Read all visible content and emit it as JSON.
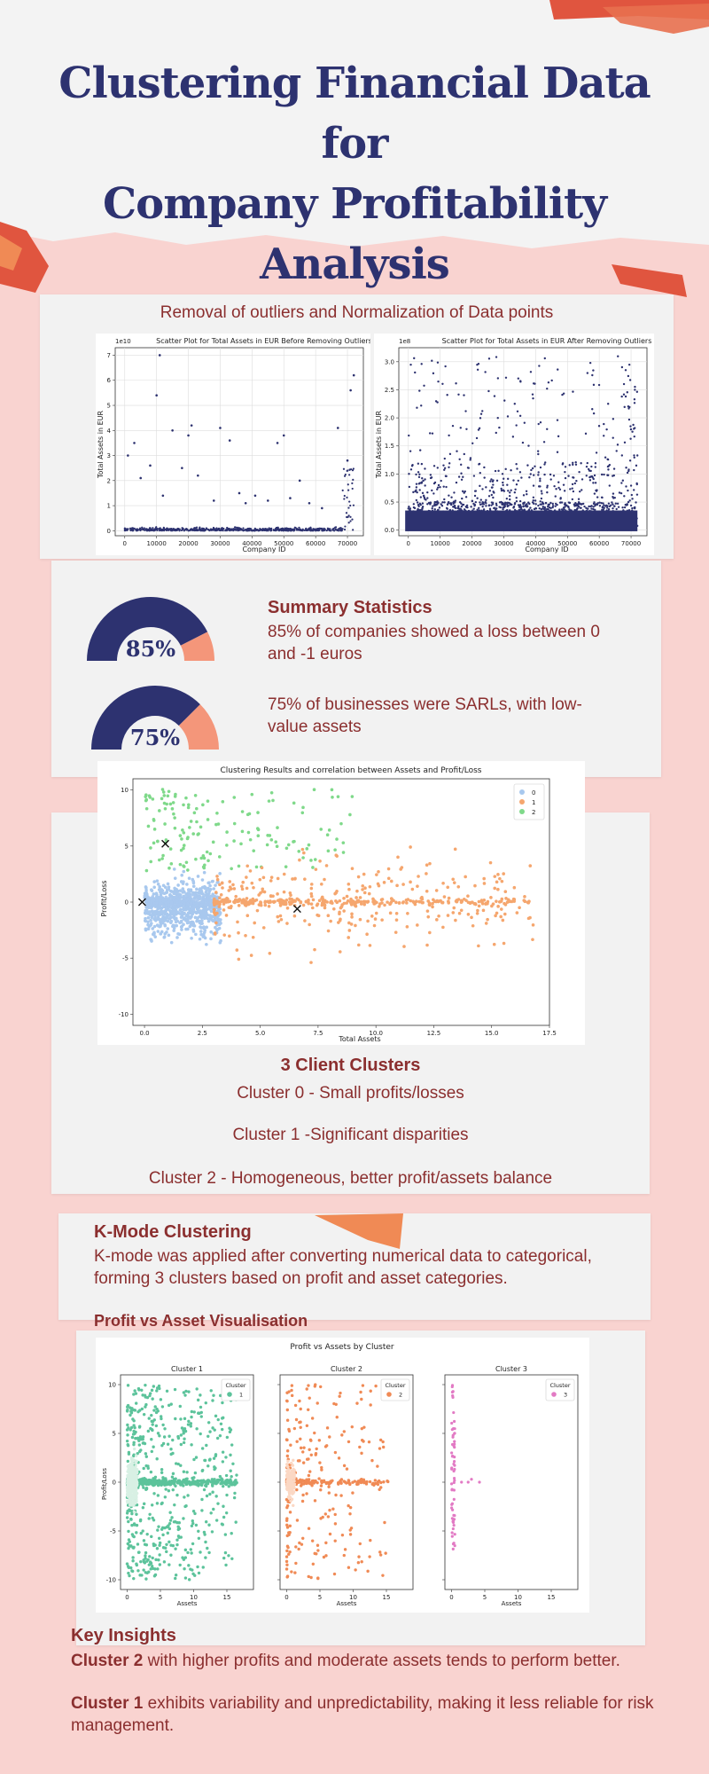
{
  "title_lines": [
    "Clustering Financial Data for",
    "Company Profitability",
    "Analysis"
  ],
  "outliers_section": {
    "title": "Removal of outliers and Normalization of Data points",
    "chart_before": {
      "title": "Scatter Plot for Total Assets in EUR Before Removing Outliers",
      "xlabel": "Company ID",
      "ylabel": "Total Assets in EUR",
      "exponent": "1e10",
      "xticks": [
        "0",
        "10000",
        "20000",
        "30000",
        "40000",
        "50000",
        "60000",
        "70000"
      ],
      "yticks": [
        "0",
        "1",
        "2",
        "3",
        "4",
        "5",
        "6",
        "7"
      ]
    },
    "chart_after": {
      "title": "Scatter Plot for Total Assets in EUR After Removing Outliers",
      "xlabel": "Company ID",
      "ylabel": "Total Assets in EUR",
      "exponent": "1e8",
      "xticks": [
        "0",
        "10000",
        "20000",
        "30000",
        "40000",
        "50000",
        "60000",
        "70000"
      ],
      "yticks": [
        "0.0",
        "0.5",
        "1.0",
        "1.5",
        "2.0",
        "2.5",
        "3.0"
      ]
    }
  },
  "summary": {
    "heading": "Summary Statistics",
    "stat1_pct_label": "85%",
    "stat1_text": "85% of companies showed a loss between 0 and -1 euros",
    "stat2_pct_label": "75%",
    "stat2_text": "75% of businesses were SARLs, with low-value assets"
  },
  "cluster_chart": {
    "title": "Clustering Results and correlation between Assets and Profit/Loss",
    "xlabel": "Total Assets",
    "ylabel": "Profit/Loss",
    "xticks": [
      "0.0",
      "2.5",
      "5.0",
      "7.5",
      "10.0",
      "12.5",
      "15.0",
      "17.5"
    ],
    "yticks": [
      "10",
      "5",
      "0",
      "-5",
      "-10"
    ],
    "legend": [
      "0",
      "1",
      "2"
    ]
  },
  "clusters_text": {
    "heading": "3 Client Clusters",
    "c0": "Cluster 0 - Small profits/losses",
    "c1": "Cluster 1 -Significant disparities",
    "c2": "Cluster 2 - Homogeneous, better profit/assets balance"
  },
  "kmode": {
    "heading": "K-Mode Clustering",
    "text": "K-mode was applied after converting numerical data to categorical, forming 3 clusters based on profit and asset categories.",
    "viz_heading": "Profit vs Asset Visualisation"
  },
  "pva_chart": {
    "suptitle": "Profit vs Assets by Cluster",
    "panels": [
      {
        "title": "Cluster 1",
        "legend_title": "Cluster",
        "legend_label": "1"
      },
      {
        "title": "Cluster 2",
        "legend_title": "Cluster",
        "legend_label": "2"
      },
      {
        "title": "Cluster 3",
        "legend_title": "Cluster",
        "legend_label": "3"
      }
    ],
    "xlabel": "Assets",
    "ylabel": "Profit/Loss",
    "xticks": [
      "0",
      "5",
      "10",
      "15"
    ],
    "yticks": [
      "10",
      "5",
      "0",
      "-5",
      "-10"
    ]
  },
  "insights": {
    "heading": "Key Insights",
    "p1_bold": "Cluster 2",
    "p1_rest": " with higher profits and moderate assets tends to perform better.",
    "p2_bold": "Cluster 1",
    "p2_rest": " exhibits variability and unpredictability, making it less reliable for risk management."
  },
  "colors": {
    "navy": "#2d3270",
    "salmon": "#f4967a",
    "maroon": "#8b2f2f",
    "cluster0": "#a8c8ee",
    "cluster1": "#f5a66e",
    "cluster2": "#7fd98a",
    "kteal": "#5cc39b",
    "korange": "#f08a55",
    "kpink": "#e27ac4"
  },
  "chart_data": [
    {
      "type": "gauge",
      "values": [
        85,
        75
      ],
      "labels": [
        "85%",
        "75%"
      ]
    },
    {
      "type": "scatter",
      "title": "Scatter Plot for Total Assets in EUR Before Removing Outliers",
      "xlabel": "Company ID",
      "ylabel": "Total Assets in EUR",
      "xlim": [
        -3000,
        75000
      ],
      "ylim": [
        -0.2,
        7.3
      ],
      "y_scale_note": "1e10",
      "series": [
        {
          "x": [
            1000,
            3000,
            5000,
            8000,
            10000,
            11000,
            12000,
            15000,
            18000,
            20000,
            21000,
            23000,
            28000,
            30000,
            33000,
            36000,
            38000,
            41000,
            45000,
            48000,
            50000,
            52000,
            55000,
            58000,
            62000,
            67000,
            70000,
            71000,
            72000
          ],
          "y": [
            3.0,
            3.5,
            2.1,
            2.6,
            5.4,
            7.0,
            1.4,
            4.0,
            2.5,
            3.8,
            4.2,
            2.2,
            1.2,
            4.1,
            3.6,
            1.5,
            1.1,
            1.4,
            1.2,
            3.5,
            3.8,
            1.3,
            2.0,
            1.1,
            0.9,
            4.1,
            2.8,
            5.6,
            6.2
          ]
        }
      ]
    },
    {
      "type": "scatter",
      "title": "Scatter Plot for Total Assets in EUR After Removing Outliers",
      "xlabel": "Company ID",
      "ylabel": "Total Assets in EUR",
      "xlim": [
        -3000,
        75000
      ],
      "ylim": [
        -0.1,
        3.25
      ],
      "y_scale_note": "1e8"
    },
    {
      "type": "scatter",
      "title": "Clustering Results and correlation between Assets and Profit/Loss",
      "xlabel": "Total Assets",
      "ylabel": "Profit/Loss",
      "xlim": [
        -0.5,
        17.5
      ],
      "ylim": [
        -11,
        11
      ],
      "series": [
        {
          "name": "0",
          "x_range": [
            0,
            3.5
          ],
          "y_range": [
            -10,
            10
          ]
        },
        {
          "name": "1",
          "x_range": [
            3,
            16.8
          ],
          "y_range": [
            -10,
            10
          ]
        },
        {
          "name": "2",
          "x_range": [
            0,
            9.5
          ],
          "y_range": [
            2.5,
            10
          ]
        }
      ],
      "centroids": [
        [
          -0.1,
          0.0
        ],
        [
          0.9,
          5.2
        ],
        [
          6.6,
          -0.6
        ]
      ]
    },
    {
      "type": "scatter",
      "title": "Profit vs Assets by Cluster",
      "xlabel": "Assets",
      "ylabel": "Profit/Loss",
      "xlim": [
        -1,
        19
      ],
      "ylim": [
        -11,
        11
      ],
      "series": [
        {
          "name": "1",
          "x_range": [
            0,
            16.5
          ],
          "y_range": [
            -10,
            10
          ]
        },
        {
          "name": "2",
          "x_range": [
            0,
            15.5
          ],
          "y_range": [
            -10,
            10
          ]
        },
        {
          "name": "3",
          "x_range": [
            0,
            4.5
          ],
          "y_range": [
            -8,
            10
          ]
        }
      ]
    }
  ]
}
